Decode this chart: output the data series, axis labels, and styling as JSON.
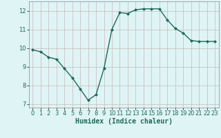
{
  "x": [
    0,
    1,
    2,
    3,
    4,
    5,
    6,
    7,
    8,
    9,
    10,
    11,
    12,
    13,
    14,
    15,
    16,
    17,
    18,
    19,
    20,
    21,
    22,
    23
  ],
  "y": [
    9.9,
    9.8,
    9.5,
    9.4,
    8.9,
    8.4,
    7.8,
    7.2,
    7.5,
    8.9,
    11.0,
    11.9,
    11.85,
    12.05,
    12.1,
    12.1,
    12.1,
    11.5,
    11.05,
    10.8,
    10.4,
    10.35,
    10.35,
    10.35
  ],
  "line_color": "#1a6b5a",
  "marker": "D",
  "marker_size": 2.0,
  "background_color": "#dff4f4",
  "grid_color": "#c8b8b8",
  "xlabel": "Humidex (Indice chaleur)",
  "ylim": [
    6.8,
    12.5
  ],
  "xlim": [
    -0.5,
    23.5
  ],
  "yticks": [
    7,
    8,
    9,
    10,
    11,
    12
  ],
  "xticks": [
    0,
    1,
    2,
    3,
    4,
    5,
    6,
    7,
    8,
    9,
    10,
    11,
    12,
    13,
    14,
    15,
    16,
    17,
    18,
    19,
    20,
    21,
    22,
    23
  ],
  "tick_fontsize": 6.0,
  "xlabel_fontsize": 7.0,
  "linewidth": 1.0
}
